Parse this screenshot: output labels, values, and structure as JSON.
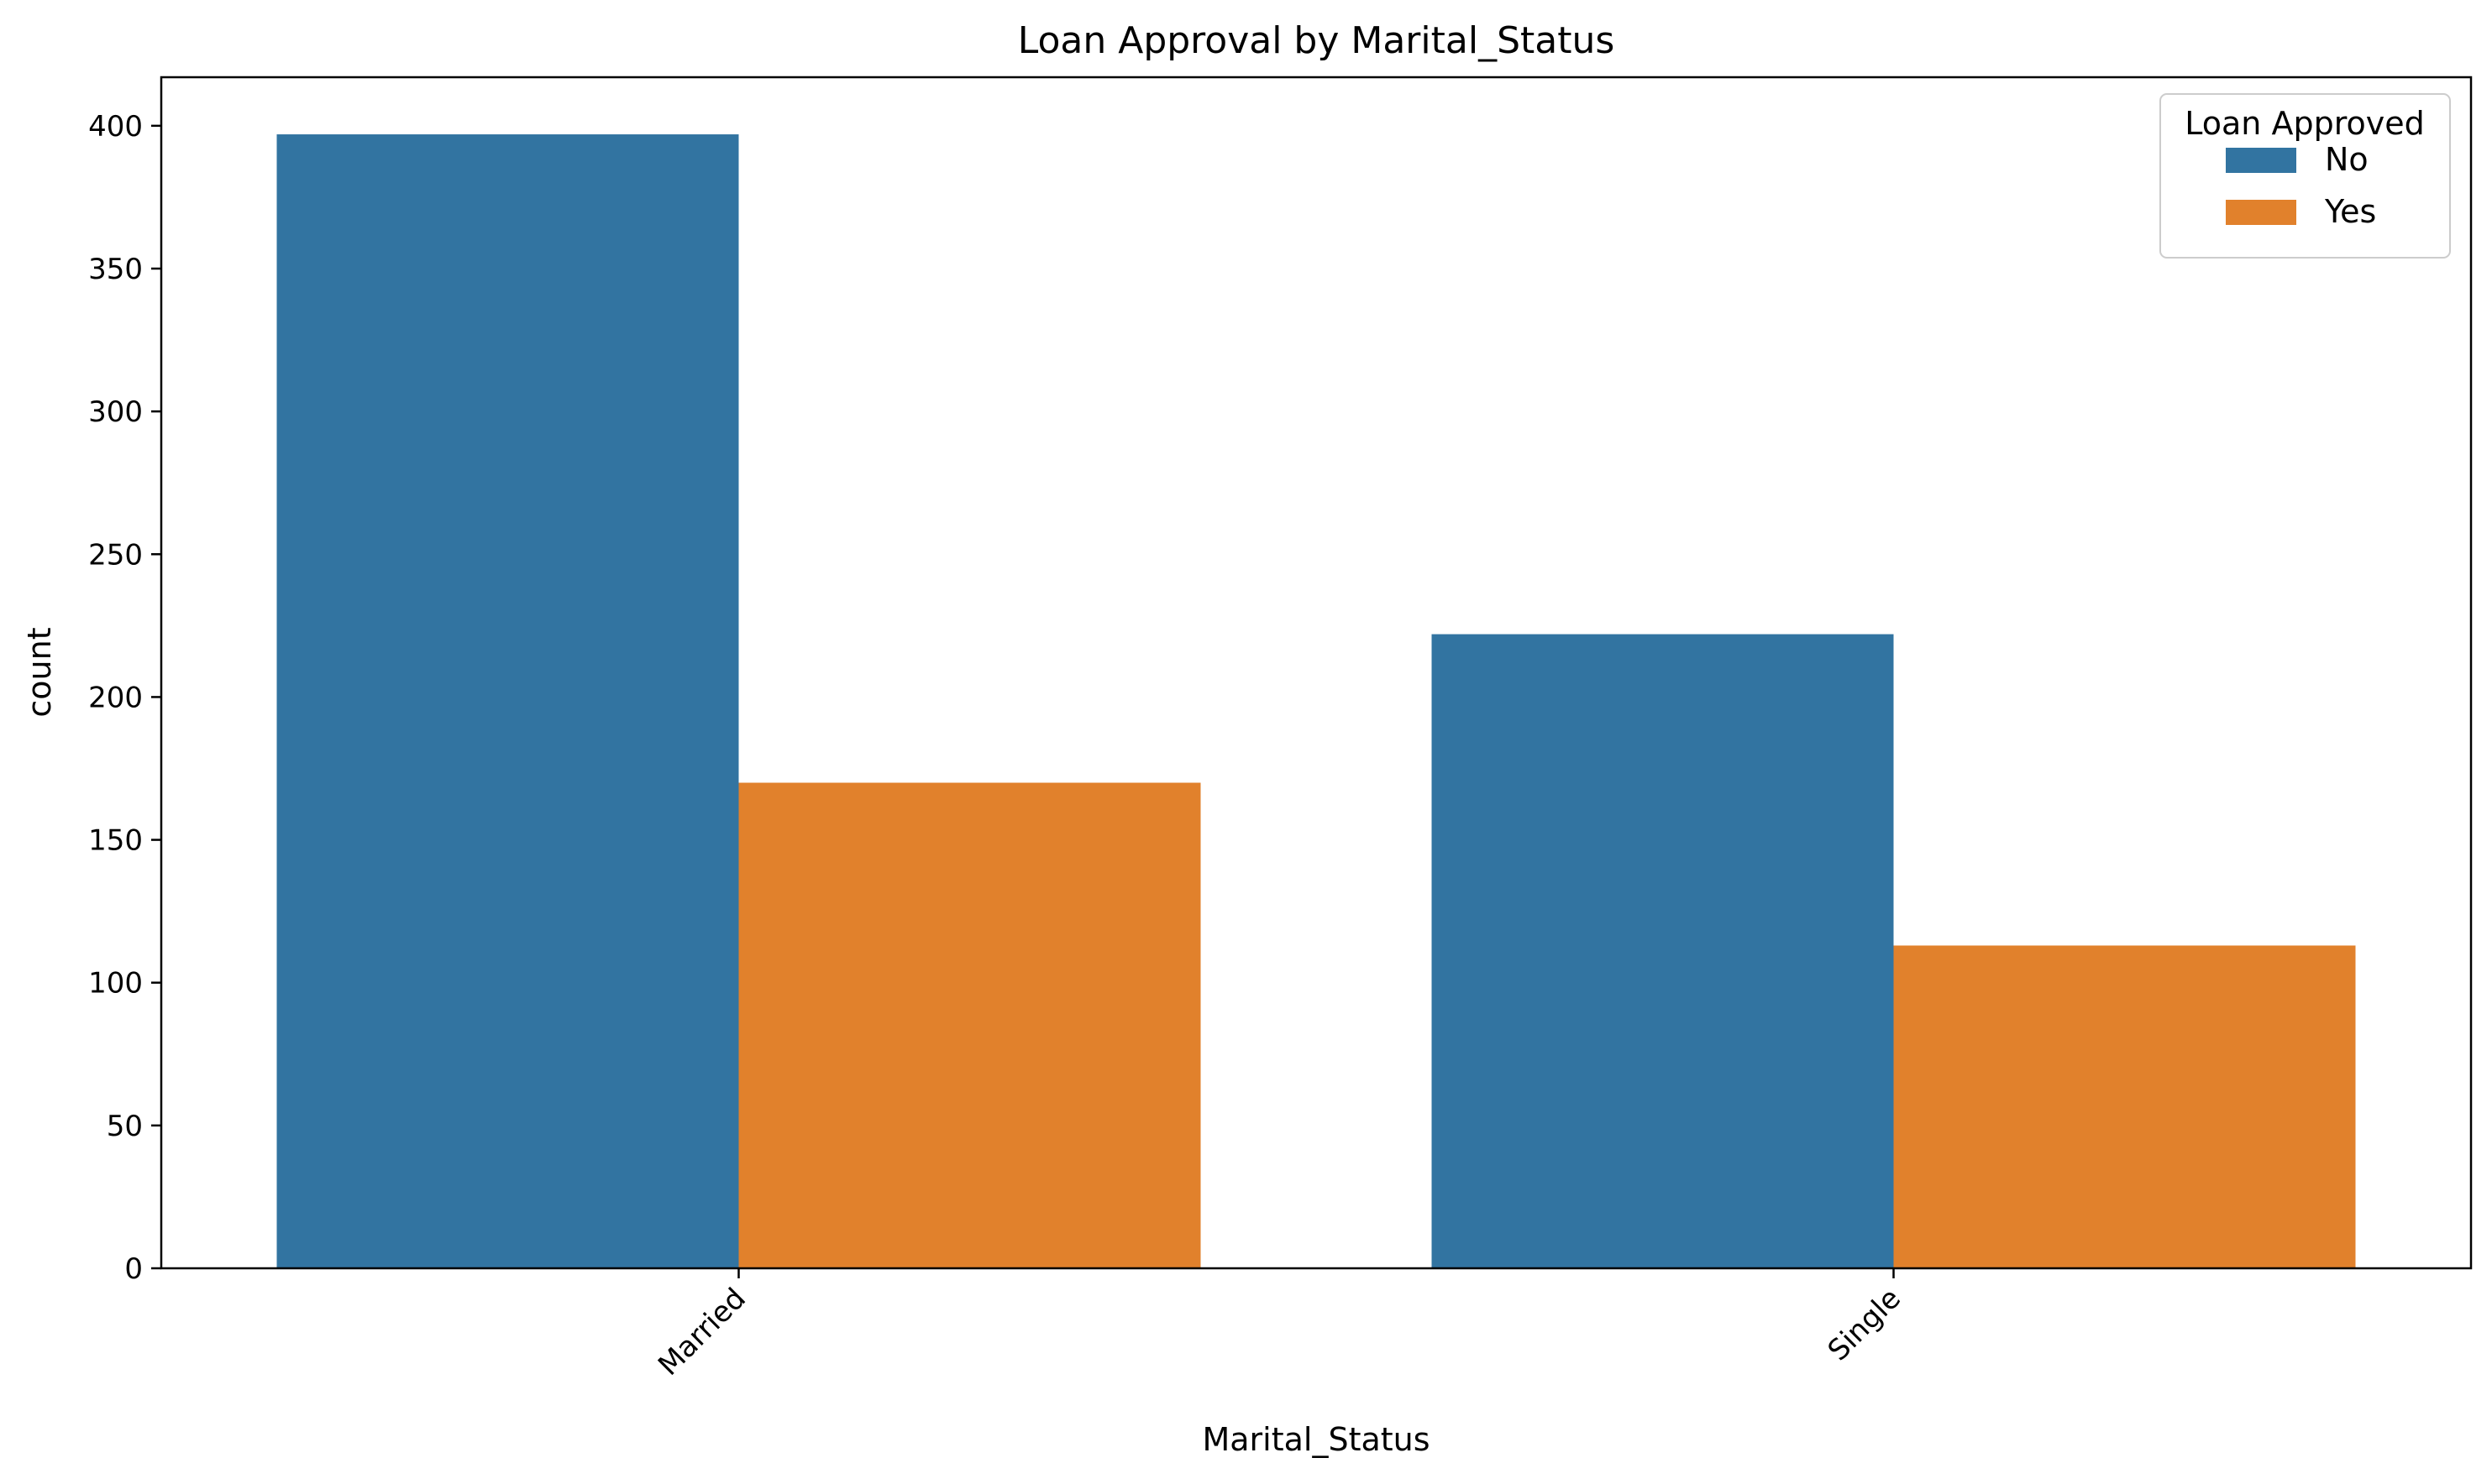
{
  "chart_data": {
    "type": "bar",
    "title": "Loan Approval by Marital_Status",
    "xlabel": "Marital_Status",
    "ylabel": "count",
    "categories": [
      "Married",
      "Single"
    ],
    "series": [
      {
        "name": "No",
        "values": [
          397,
          222
        ],
        "color": "#3274a1"
      },
      {
        "name": "Yes",
        "values": [
          170,
          113
        ],
        "color": "#e1812c"
      }
    ],
    "ylim": [
      0,
      417
    ],
    "yticks": [
      0,
      50,
      100,
      150,
      200,
      250,
      300,
      350,
      400
    ],
    "grid": false,
    "legend": {
      "title": "Loan Approved",
      "placement": "top-right"
    }
  }
}
